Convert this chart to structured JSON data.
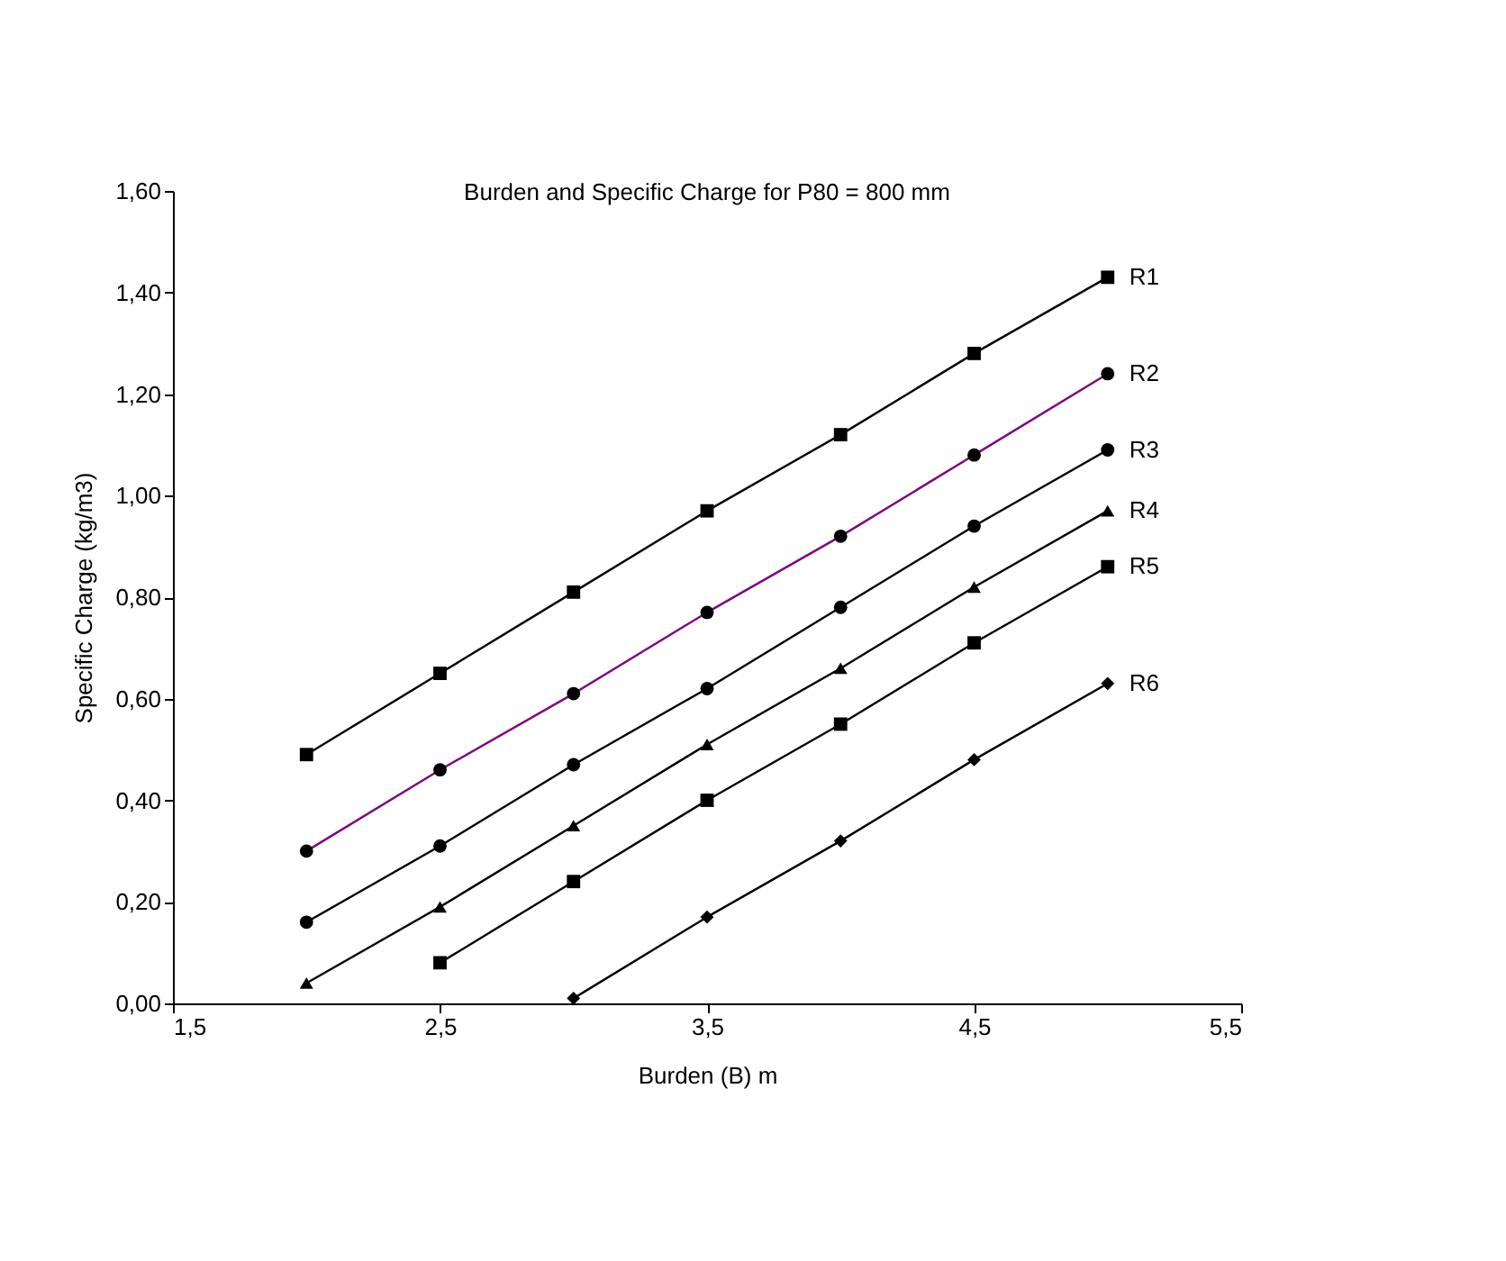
{
  "chart_data": {
    "type": "line",
    "title": "Burden and Specific Charge for P80 = 800 mm",
    "xlabel": "Burden (B) m",
    "ylabel": "Specific Charge (kg/m3)",
    "xlim": [
      1.5,
      5.5
    ],
    "ylim": [
      0,
      1.6
    ],
    "xticks": [
      {
        "value": 1.5,
        "label": "1,5"
      },
      {
        "value": 2.5,
        "label": "2,5"
      },
      {
        "value": 3.5,
        "label": "3,5"
      },
      {
        "value": 4.5,
        "label": "4,5"
      },
      {
        "value": 5.5,
        "label": "5,5"
      }
    ],
    "yticks": [
      {
        "value": 0,
        "label": "0,00"
      },
      {
        "value": 0.2,
        "label": "0,20"
      },
      {
        "value": 0.4,
        "label": "0,40"
      },
      {
        "value": 0.6,
        "label": "0,60"
      },
      {
        "value": 0.8,
        "label": "0,80"
      },
      {
        "value": 1.0,
        "label": "1,00"
      },
      {
        "value": 1.2,
        "label": "1,20"
      },
      {
        "value": 1.4,
        "label": "1,40"
      },
      {
        "value": 1.6,
        "label": "1,60"
      }
    ],
    "grid": false,
    "line_style": "solid",
    "series": [
      {
        "name": "R1",
        "color": "#000000",
        "marker": "square",
        "x": [
          2.0,
          2.5,
          3.0,
          3.5,
          4.0,
          4.5,
          5.0
        ],
        "values": [
          0.49,
          0.65,
          0.81,
          0.97,
          1.12,
          1.28,
          1.43
        ]
      },
      {
        "name": "R2",
        "color": "#800080",
        "marker": "circle",
        "x": [
          2.0,
          2.5,
          3.0,
          3.5,
          4.0,
          4.5,
          5.0
        ],
        "values": [
          0.3,
          0.46,
          0.61,
          0.77,
          0.92,
          1.08,
          1.24
        ]
      },
      {
        "name": "R3",
        "color": "#000000",
        "marker": "circle",
        "x": [
          2.0,
          2.5,
          3.0,
          3.5,
          4.0,
          4.5,
          5.0
        ],
        "values": [
          0.16,
          0.31,
          0.47,
          0.62,
          0.78,
          0.94,
          1.09
        ]
      },
      {
        "name": "R4",
        "color": "#000000",
        "marker": "triangle",
        "x": [
          2.0,
          2.5,
          3.0,
          3.5,
          4.0,
          4.5,
          5.0
        ],
        "values": [
          0.04,
          0.19,
          0.35,
          0.51,
          0.66,
          0.82,
          0.97
        ]
      },
      {
        "name": "R5",
        "color": "#000000",
        "marker": "square",
        "x": [
          2.5,
          3.0,
          3.5,
          4.0,
          4.5,
          5.0
        ],
        "values": [
          0.08,
          0.24,
          0.4,
          0.55,
          0.71,
          0.86
        ]
      },
      {
        "name": "R6",
        "color": "#000000",
        "marker": "diamond",
        "x": [
          3.0,
          3.5,
          4.0,
          4.5,
          5.0
        ],
        "values": [
          0.01,
          0.17,
          0.32,
          0.48,
          0.63
        ]
      }
    ]
  }
}
